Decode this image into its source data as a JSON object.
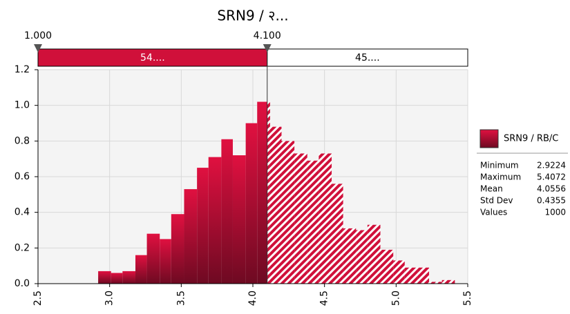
{
  "chart_data": {
    "type": "histogram",
    "title": "SRN9 / २...",
    "bins": [
      2.92,
      3.01,
      3.09,
      3.18,
      3.26,
      3.35,
      3.43,
      3.52,
      3.61,
      3.69,
      3.78,
      3.86,
      3.95,
      4.03,
      4.12,
      4.2,
      4.29,
      4.38,
      4.46,
      4.55,
      4.63,
      4.72,
      4.8,
      4.89,
      4.98,
      5.06,
      5.15,
      5.23,
      5.32,
      5.41
    ],
    "values": [
      0.07,
      0.06,
      0.07,
      0.16,
      0.28,
      0.25,
      0.39,
      0.53,
      0.65,
      0.71,
      0.81,
      0.72,
      0.9,
      1.02,
      0.88,
      0.8,
      0.73,
      0.69,
      0.73,
      0.56,
      0.31,
      0.3,
      0.33,
      0.19,
      0.13,
      0.09,
      0.09,
      0.01,
      0.02
    ],
    "color": "#d0103a",
    "xlim": [
      2.5,
      5.5
    ],
    "xticks": [
      2.5,
      {
        "value": 3,
        "label": "3.0"
      },
      3.5,
      {
        "value": 4,
        "label": "4.0"
      },
      4.5,
      {
        "value": 5,
        "label": "5.0"
      },
      5.5
    ],
    "ylim": [
      0,
      1.2
    ],
    "yticks": [
      {
        "value": 0,
        "label": "0.0"
      },
      0.2,
      0.4,
      0.6,
      0.8,
      {
        "value": 1,
        "label": "1.0"
      },
      1.2
    ],
    "grid": true,
    "delimiters": [
      {
        "value": 1,
        "label": "1.000"
      },
      {
        "value": 4.1,
        "label": "4.100"
      }
    ],
    "regions": [
      "54....",
      "45...."
    ],
    "series_name": "SRN9 / RB/C",
    "statistics": [
      {
        "label": "Minimum",
        "value": 2.9224
      },
      {
        "label": "Maximum",
        "value": 5.4072
      },
      {
        "label": "Mean",
        "value": 4.0556
      },
      {
        "label": "Std Dev",
        "value": 0.4355
      },
      {
        "label": "Values",
        "value": 1000
      }
    ]
  }
}
